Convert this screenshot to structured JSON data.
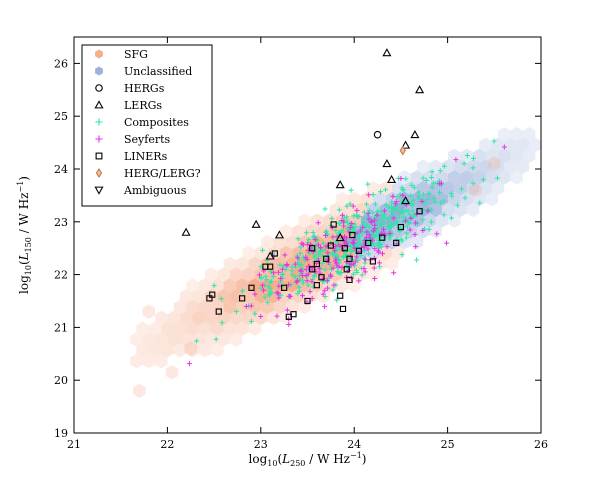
{
  "chart_data": {
    "type": "scatter",
    "xlabel": "log10(L250 / W Hz−1)",
    "ylabel": "log10(L150 / W Hz−1)",
    "xlabel_parts": {
      "pre": "log",
      "sub1": "10",
      "mid": "(",
      "ital": "L",
      "sub2": "250",
      "post": " / W Hz",
      "sup": "−1",
      "end": ")"
    },
    "ylabel_parts": {
      "pre": "log",
      "sub1": "10",
      "mid": "(",
      "ital": "L",
      "sub2": "150",
      "post": " / W Hz",
      "sup": "−1",
      "end": ")"
    },
    "xlim": [
      21,
      26
    ],
    "ylim": [
      19,
      26.5
    ],
    "xticks": [
      "21",
      "22",
      "23",
      "24",
      "25",
      "26"
    ],
    "yticks": [
      "19",
      "20",
      "21",
      "22",
      "23",
      "24",
      "25",
      "26"
    ],
    "legend_position": "top-left",
    "legend": [
      {
        "label": "SFG",
        "marker": "hexagon",
        "color": "#f4a582"
      },
      {
        "label": "Unclassified",
        "marker": "hexagon",
        "color": "#92a8d8"
      },
      {
        "label": "HERGs",
        "marker": "circle",
        "color": "#000000"
      },
      {
        "label": "LERGs",
        "marker": "triangle-up",
        "color": "#000000"
      },
      {
        "label": "Composites",
        "marker": "plus",
        "color": "#2ee6a8"
      },
      {
        "label": "Seyferts",
        "marker": "plus",
        "color": "#e633e6"
      },
      {
        "label": "LINERs",
        "marker": "square",
        "color": "#000000"
      },
      {
        "label": "HERG/LERG?",
        "marker": "diamond",
        "color": "#c87850"
      },
      {
        "label": "Ambiguous",
        "marker": "triangle-down",
        "color": "#000000"
      }
    ],
    "series": [
      {
        "name": "LERGs",
        "marker": "triangle-up",
        "points": [
          [
            22.2,
            22.8
          ],
          [
            22.95,
            22.95
          ],
          [
            23.2,
            22.75
          ],
          [
            23.1,
            22.35
          ],
          [
            23.85,
            23.7
          ],
          [
            24.35,
            26.2
          ],
          [
            24.7,
            25.5
          ],
          [
            24.65,
            24.65
          ],
          [
            24.55,
            24.45
          ],
          [
            24.35,
            24.1
          ],
          [
            24.4,
            23.8
          ],
          [
            24.55,
            23.4
          ],
          [
            23.85,
            22.7
          ]
        ]
      },
      {
        "name": "HERGs",
        "marker": "circle",
        "points": [
          [
            24.25,
            24.65
          ]
        ]
      },
      {
        "name": "HERG/LERG?",
        "marker": "diamond",
        "points": [
          [
            24.52,
            24.35
          ]
        ]
      },
      {
        "name": "LINERs",
        "marker": "square",
        "points": [
          [
            22.45,
            21.55
          ],
          [
            22.55,
            21.3
          ],
          [
            22.48,
            21.62
          ],
          [
            22.8,
            21.55
          ],
          [
            22.9,
            21.75
          ],
          [
            23.05,
            22.15
          ],
          [
            23.1,
            22.15
          ],
          [
            23.15,
            22.4
          ],
          [
            23.3,
            21.2
          ],
          [
            23.35,
            21.25
          ],
          [
            23.25,
            21.75
          ],
          [
            23.5,
            21.5
          ],
          [
            23.55,
            22.1
          ],
          [
            23.6,
            21.8
          ],
          [
            23.6,
            22.2
          ],
          [
            23.55,
            22.5
          ],
          [
            23.65,
            21.95
          ],
          [
            23.7,
            22.3
          ],
          [
            23.75,
            22.55
          ],
          [
            23.78,
            22.95
          ],
          [
            23.85,
            21.6
          ],
          [
            23.88,
            21.35
          ],
          [
            23.9,
            22.5
          ],
          [
            23.95,
            22.3
          ],
          [
            23.95,
            21.9
          ],
          [
            23.92,
            22.1
          ],
          [
            23.98,
            22.75
          ],
          [
            24.05,
            22.45
          ],
          [
            24.15,
            22.6
          ],
          [
            24.2,
            22.25
          ],
          [
            24.3,
            22.7
          ],
          [
            24.45,
            22.6
          ],
          [
            24.5,
            22.9
          ],
          [
            24.7,
            23.2
          ]
        ]
      }
    ],
    "scatter_clouds": [
      {
        "name": "Composites",
        "marker": "plus",
        "count": 460,
        "center": [
          24.0,
          22.65
        ],
        "spread": [
          0.5,
          0.35
        ],
        "slope": 0.9
      },
      {
        "name": "Seyferts",
        "marker": "plus",
        "count": 200,
        "center": [
          23.85,
          22.4
        ],
        "spread": [
          0.5,
          0.35
        ],
        "slope": 0.9
      }
    ],
    "density_regions": [
      {
        "name": "Unclassified",
        "center": [
          24.2,
          22.85
        ],
        "spread": [
          0.6,
          0.35
        ],
        "slope": 0.9
      },
      {
        "name": "SFG",
        "center": [
          23.6,
          22.3
        ],
        "spread": [
          0.65,
          0.4
        ],
        "slope": 0.9
      }
    ]
  }
}
